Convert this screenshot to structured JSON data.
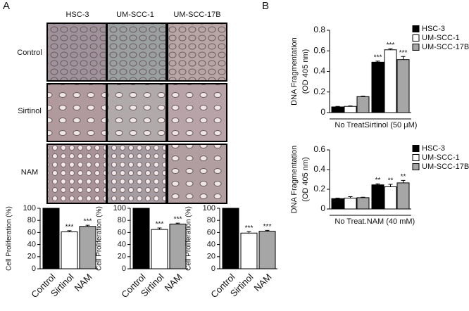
{
  "panel_labels": [
    "A",
    "B"
  ],
  "image_grid": {
    "columns": [
      "HSC-3",
      "UM-SCC-1",
      "UM-SCC-17B"
    ],
    "rows": [
      "Control",
      "Sirtinol",
      "NAM"
    ]
  },
  "chart_data": [
    {
      "type": "bar",
      "y_label": [
        "Cell Proliferation (%)"
      ],
      "categories": [
        "Control",
        "Sirtinol",
        "NAM"
      ],
      "values": [
        100,
        61,
        70
      ],
      "errors": [
        0,
        2,
        2
      ],
      "colors": [
        "#000000",
        "#ffffff",
        "#a6a6a6"
      ],
      "significance": [
        null,
        "***",
        "***"
      ],
      "ylim": [
        0,
        100
      ],
      "yticks": [
        0,
        20,
        40,
        60,
        80,
        100
      ]
    },
    {
      "type": "bar",
      "y_label": [
        "Cell Proliferation (%)"
      ],
      "categories": [
        "Control",
        "Sirtinol",
        "NAM"
      ],
      "values": [
        100,
        65,
        74
      ],
      "errors": [
        0,
        2.5,
        1.5
      ],
      "colors": [
        "#000000",
        "#ffffff",
        "#a6a6a6"
      ],
      "significance": [
        null,
        "***",
        "***"
      ],
      "ylim": [
        0,
        100
      ],
      "yticks": [
        0,
        20,
        40,
        60,
        80,
        100
      ]
    },
    {
      "type": "bar",
      "y_label": [
        "Cell Proliferation (%)"
      ],
      "categories": [
        "Control",
        "Sirtinol",
        "NAM"
      ],
      "values": [
        100,
        59,
        62
      ],
      "errors": [
        0,
        2.5,
        1.5
      ],
      "colors": [
        "#000000",
        "#ffffff",
        "#a6a6a6"
      ],
      "significance": [
        null,
        "***",
        "***"
      ],
      "ylim": [
        0,
        100
      ],
      "yticks": [
        0,
        20,
        40,
        60,
        80,
        100
      ]
    },
    {
      "type": "grouped_bar",
      "y_label": [
        "DNA Fragmentation",
        "(OD 405 nm)"
      ],
      "categories": [
        "No Treat.",
        "Sirtinol (50 μM)"
      ],
      "series": [
        {
          "name": "HSC-3",
          "color": "#000000",
          "values": [
            0.055,
            0.49
          ],
          "errors": [
            0.005,
            0.01
          ],
          "significance": [
            null,
            "***"
          ]
        },
        {
          "name": "UM-SCC-1",
          "color": "#ffffff",
          "values": [
            0.06,
            0.61
          ],
          "errors": [
            0.005,
            0.01
          ],
          "significance": [
            null,
            "***"
          ]
        },
        {
          "name": "UM-SCC-17B",
          "color": "#a6a6a6",
          "values": [
            0.155,
            0.515
          ],
          "errors": [
            0.005,
            0.03
          ],
          "significance": [
            null,
            "***"
          ]
        }
      ],
      "ylim": [
        0,
        0.8
      ],
      "yticks": [
        0,
        0.2,
        0.4,
        0.6,
        0.8
      ],
      "legend": "right"
    },
    {
      "type": "grouped_bar",
      "y_label": [
        "DNA Fragmentation",
        "(OD 405 nm)"
      ],
      "categories": [
        "No Treat.",
        "NAM (40 mM)"
      ],
      "series": [
        {
          "name": "HSC-3",
          "color": "#000000",
          "values": [
            0.105,
            0.245
          ],
          "errors": [
            0.005,
            0.01
          ],
          "significance": [
            null,
            "**"
          ]
        },
        {
          "name": "UM-SCC-1",
          "color": "#ffffff",
          "values": [
            0.11,
            0.225
          ],
          "errors": [
            0.015,
            0.025
          ],
          "significance": [
            null,
            "**"
          ]
        },
        {
          "name": "UM-SCC-17B",
          "color": "#a6a6a6",
          "values": [
            0.115,
            0.265
          ],
          "errors": [
            0.005,
            0.025
          ],
          "significance": [
            null,
            "**"
          ]
        }
      ],
      "ylim": [
        0,
        0.6
      ],
      "yticks": [
        0,
        0.2,
        0.4,
        0.6
      ],
      "legend": "right"
    }
  ]
}
